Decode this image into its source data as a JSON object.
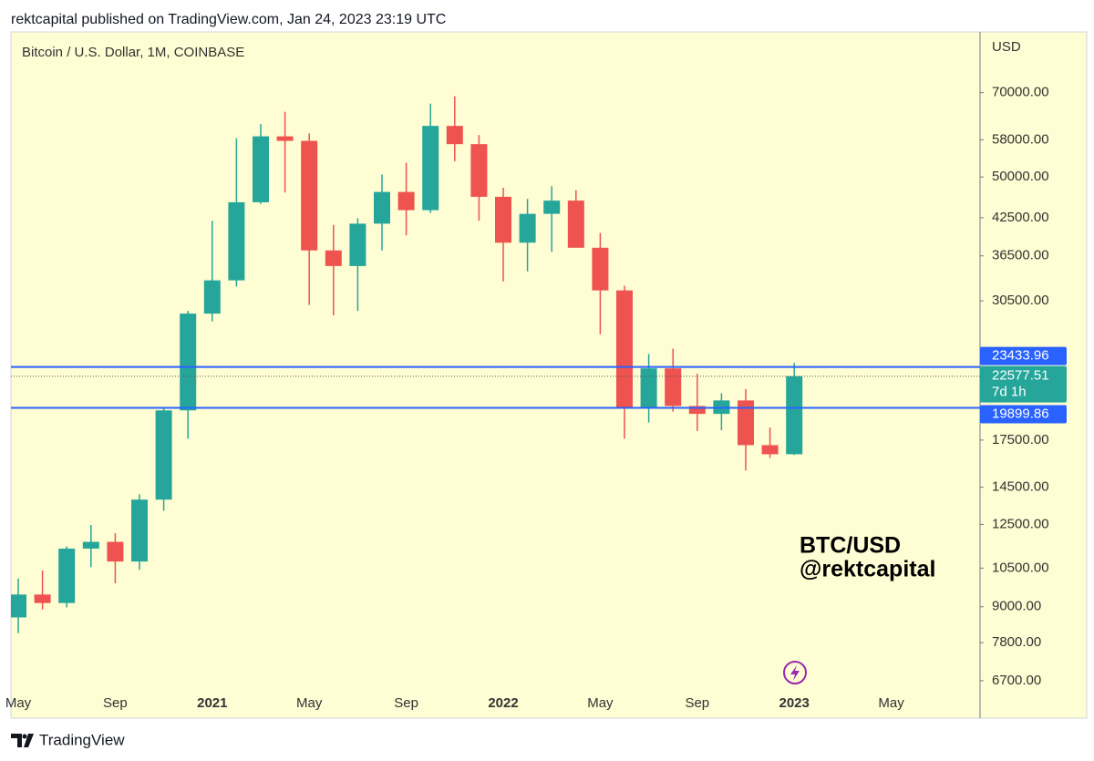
{
  "chart_data": {
    "type": "candlestick",
    "header": "rektcapital published on TradingView.com, Jan 24, 2023 23:19 UTC",
    "title": "Bitcoin / U.S. Dollar, 1M, COINBASE",
    "y_label": "USD",
    "annotations": [
      "BTC/USD",
      "@rektcapital"
    ],
    "footer": "TradingView",
    "countdown": "7d 1h",
    "categories": [
      "May",
      null,
      null,
      null,
      "Sep",
      null,
      null,
      null,
      "2021",
      null,
      null,
      null,
      "May",
      null,
      null,
      null,
      "Sep",
      null,
      null,
      null,
      "2022",
      null,
      null,
      null,
      "May",
      null,
      null,
      null,
      "Sep",
      null,
      null,
      null,
      "2023",
      null,
      null,
      null,
      "May"
    ],
    "open": [
      8625,
      9450,
      9135,
      11350,
      11660,
      10780,
      13800,
      19700,
      28990,
      33100,
      45200,
      58800,
      57750,
      37300,
      35050,
      41500,
      47100,
      43800,
      61300,
      57000,
      46200,
      38470,
      43160,
      45500,
      37700,
      31800,
      19950,
      23300,
      20050,
      19430,
      20500,
      17150,
      16540,
      null,
      null,
      null,
      null
    ],
    "high": [
      10070,
      10400,
      11450,
      12470,
      12070,
      14100,
      19900,
      29300,
      41950,
      58350,
      61800,
      64850,
      59500,
      41300,
      42400,
      50500,
      52900,
      67000,
      69000,
      59100,
      47900,
      45800,
      48200,
      47450,
      40000,
      32400,
      24670,
      25200,
      22800,
      21100,
      21450,
      18400,
      23800,
      null,
      null,
      null,
      null
    ],
    "low": [
      8100,
      8900,
      8980,
      10540,
      9880,
      10430,
      13200,
      17600,
      28100,
      32300,
      44900,
      47000,
      30000,
      28800,
      29300,
      37300,
      39600,
      43300,
      53250,
      42000,
      32950,
      34300,
      37100,
      37700,
      26700,
      17600,
      18780,
      19600,
      18150,
      18200,
      15500,
      16300,
      16500,
      null,
      null,
      null,
      null
    ],
    "close": [
      9450,
      9135,
      11350,
      11660,
      10780,
      13800,
      19700,
      28990,
      33100,
      45200,
      58800,
      57750,
      37300,
      35050,
      41500,
      47100,
      43800,
      61300,
      57000,
      46200,
      38470,
      43160,
      45500,
      37700,
      31800,
      19950,
      23300,
      20050,
      19430,
      20500,
      17150,
      16540,
      22577.51,
      null,
      null,
      null,
      null
    ],
    "up_color": "#26a69a",
    "down_color": "#ef5350",
    "levels": [
      23433.96,
      19899.86
    ],
    "level_color": "#2962ff",
    "log_scale": true,
    "ylim": [
      5770,
      89200
    ],
    "yticks": [
      {
        "value": 70000,
        "label": "70000.00"
      },
      {
        "value": 58000,
        "label": "58000.00"
      },
      {
        "value": 50000,
        "label": "50000.00"
      },
      {
        "value": 42500,
        "label": "42500.00"
      },
      {
        "value": 36500,
        "label": "36500.00"
      },
      {
        "value": 30500,
        "label": "30500.00"
      },
      {
        "value": 17500,
        "label": "17500.00"
      },
      {
        "value": 14500,
        "label": "14500.00"
      },
      {
        "value": 12500,
        "label": "12500.00"
      },
      {
        "value": 10500,
        "label": "10500.00"
      },
      {
        "value": 9000,
        "label": "9000.00"
      },
      {
        "value": 7800,
        "label": "7800.00"
      },
      {
        "value": 6700,
        "label": "6700.00"
      }
    ],
    "grid": false
  }
}
